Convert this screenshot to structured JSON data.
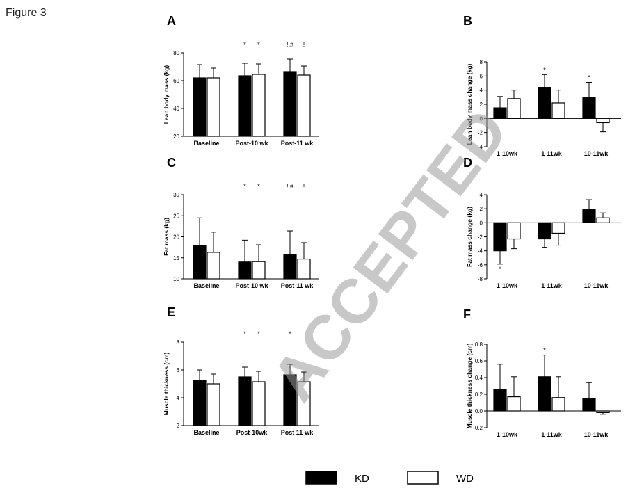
{
  "figure_label": "Figure 3",
  "watermark": "ACCEPTED",
  "legend": [
    {
      "label": "KD",
      "color": "#000000"
    },
    {
      "label": "WD",
      "color": "#ffffff"
    }
  ],
  "chart_data": [
    {
      "panel": "A",
      "type": "bar",
      "ylabel": "Lean body mass (kg)",
      "ylim": [
        20,
        80
      ],
      "yticks": [
        20,
        40,
        60,
        80
      ],
      "categories": [
        "Baseline",
        "Post-10 wk",
        "Post-11 wk"
      ],
      "series": [
        {
          "name": "KD",
          "values": [
            62,
            63.5,
            66.5
          ],
          "errors": [
            9.5,
            9,
            9
          ]
        },
        {
          "name": "WD",
          "values": [
            62,
            64.5,
            64
          ],
          "errors": [
            7,
            7.5,
            6.5
          ]
        }
      ],
      "annotations": [
        {
          "category": 1,
          "series": 0,
          "text": "*"
        },
        {
          "category": 1,
          "series": 1,
          "text": "*"
        },
        {
          "category": 2,
          "series": 0,
          "text": "!,#"
        },
        {
          "category": 2,
          "series": 1,
          "text": "!"
        }
      ]
    },
    {
      "panel": "B",
      "type": "bar",
      "ylabel": "Lean body mass change (kg)",
      "ylim": [
        -4,
        8
      ],
      "yticks": [
        -4,
        -2,
        0,
        2,
        4,
        6,
        8
      ],
      "categories": [
        "1-10wk",
        "1-11wk",
        "10-11wk"
      ],
      "series": [
        {
          "name": "KD",
          "values": [
            1.5,
            4.4,
            3.0
          ],
          "errors": [
            1.6,
            1.8,
            2.1
          ]
        },
        {
          "name": "WD",
          "values": [
            2.8,
            2.2,
            -0.6
          ],
          "errors": [
            1.2,
            1.8,
            1.3
          ]
        }
      ],
      "annotations": [
        {
          "category": 1,
          "series": 0,
          "text": "*"
        },
        {
          "category": 2,
          "series": 0,
          "text": "*"
        }
      ]
    },
    {
      "panel": "C",
      "type": "bar",
      "ylabel": "Fat mass (kg)",
      "ylim": [
        10,
        30
      ],
      "yticks": [
        10,
        15,
        20,
        25,
        30
      ],
      "categories": [
        "Baseline",
        "Post-10 wk",
        "Post-11 wk"
      ],
      "series": [
        {
          "name": "KD",
          "values": [
            18,
            14,
            15.8
          ],
          "errors": [
            6.5,
            5.2,
            5.6
          ]
        },
        {
          "name": "WD",
          "values": [
            16.3,
            14.1,
            14.7
          ],
          "errors": [
            4.8,
            4,
            3.9
          ]
        }
      ],
      "annotations": [
        {
          "category": 1,
          "series": 0,
          "text": "*"
        },
        {
          "category": 1,
          "series": 1,
          "text": "*"
        },
        {
          "category": 2,
          "series": 0,
          "text": "!,#"
        },
        {
          "category": 2,
          "series": 1,
          "text": "!"
        }
      ]
    },
    {
      "panel": "D",
      "type": "bar",
      "ylabel": "Fat mass change (kg)",
      "ylim": [
        -8,
        4
      ],
      "yticks": [
        -8,
        -6,
        -4,
        -2,
        0,
        2,
        4
      ],
      "categories": [
        "1-10wk",
        "1-11wk",
        "10-11wk"
      ],
      "series": [
        {
          "name": "KD",
          "values": [
            -4.0,
            -2.3,
            1.9
          ],
          "errors": [
            1.9,
            1.2,
            1.4
          ]
        },
        {
          "name": "WD",
          "values": [
            -2.3,
            -1.5,
            0.7
          ],
          "errors": [
            1.4,
            1.7,
            0.7
          ]
        }
      ],
      "annotations": [
        {
          "category": 0,
          "series": 0,
          "text": "*",
          "position": "below"
        }
      ]
    },
    {
      "panel": "E",
      "type": "bar",
      "ylabel": "Muscle thickness (cm)",
      "ylim": [
        2,
        8
      ],
      "yticks": [
        2,
        4,
        6,
        8
      ],
      "categories": [
        "Baseline",
        "Post-10wk",
        "Post 11-wk"
      ],
      "series": [
        {
          "name": "KD",
          "values": [
            5.25,
            5.5,
            5.65
          ],
          "errors": [
            0.75,
            0.7,
            0.75
          ]
        },
        {
          "name": "WD",
          "values": [
            5.0,
            5.15,
            5.15
          ],
          "errors": [
            0.7,
            0.75,
            0.7
          ]
        }
      ],
      "annotations": [
        {
          "category": 1,
          "series": 0,
          "text": "*"
        },
        {
          "category": 1,
          "series": 1,
          "text": "*"
        },
        {
          "category": 2,
          "series": 0,
          "text": "*"
        }
      ]
    },
    {
      "panel": "F",
      "type": "bar",
      "ylabel": "Muscle thickness change (cm)",
      "ylim": [
        -0.2,
        0.8
      ],
      "yticks": [
        -0.2,
        0.0,
        0.2,
        0.4,
        0.6,
        0.8
      ],
      "categories": [
        "1-10wk",
        "1-11wk",
        "10-11wk"
      ],
      "series": [
        {
          "name": "KD",
          "values": [
            0.26,
            0.41,
            0.15
          ],
          "errors": [
            0.3,
            0.26,
            0.19
          ]
        },
        {
          "name": "WD",
          "values": [
            0.17,
            0.16,
            -0.02
          ],
          "errors": [
            0.24,
            0.25,
            0.02
          ]
        }
      ],
      "annotations": [
        {
          "category": 1,
          "series": 0,
          "text": "*"
        }
      ]
    }
  ]
}
